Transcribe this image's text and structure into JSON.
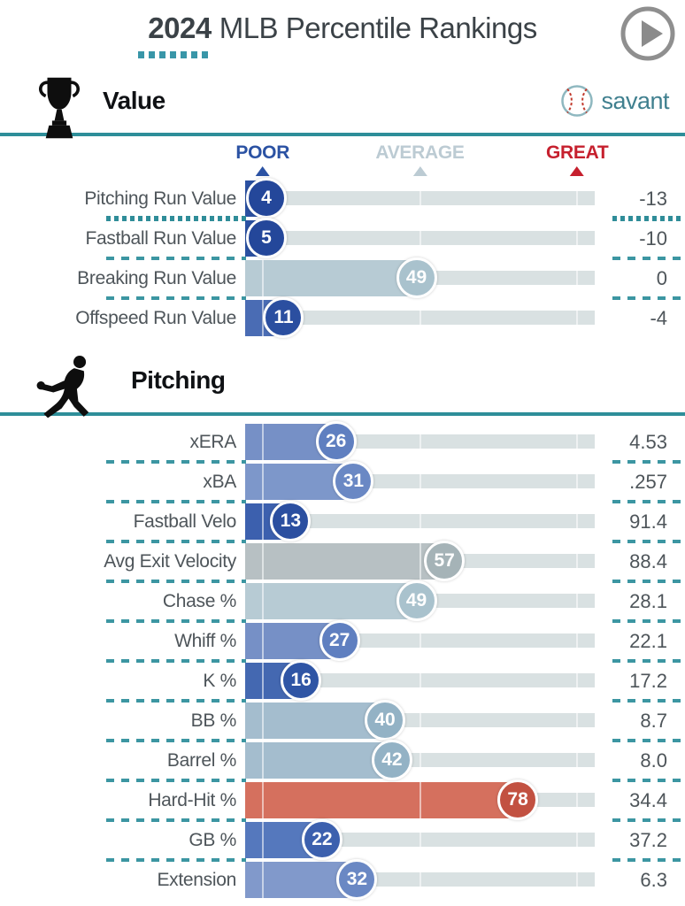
{
  "header": {
    "year": "2024",
    "title": "MLB Percentile Rankings"
  },
  "brand": {
    "name": "savant"
  },
  "legend": {
    "poor": "POOR",
    "average": "AVERAGE",
    "great": "GREAT"
  },
  "colors": {
    "accent_teal": "#2e8e99",
    "poor": "#2b52a3",
    "average": "#bccbd3",
    "great": "#c6202e",
    "track": "#d9e1e2"
  },
  "chart_data": {
    "type": "bar",
    "subtype": "percentile-rankings",
    "title": "2024 MLB Percentile Rankings",
    "axis": {
      "min": 0,
      "max": 100,
      "threshold_markers": [
        5,
        50,
        95
      ],
      "grid": false
    },
    "legend_entries": [
      "POOR",
      "AVERAGE",
      "GREAT"
    ],
    "sections": [
      {
        "title": "Value",
        "icon": "trophy-icon",
        "show_legend": true,
        "show_logo": true,
        "rows": [
          {
            "label": "Pitching Run Value",
            "percentile": 4,
            "value": "-13",
            "fill": "#2b51a2",
            "bubble": "#24479a",
            "sep": "dotted"
          },
          {
            "label": "Fastball Run Value",
            "percentile": 5,
            "value": "-10",
            "fill": "#2b51a2",
            "bubble": "#24479a",
            "sep": "dashed"
          },
          {
            "label": "Breaking Run Value",
            "percentile": 49,
            "value": "0",
            "fill": "#b7cbd4",
            "bubble": "#a9c2cd",
            "sep": "dashed"
          },
          {
            "label": "Offspeed Run Value",
            "percentile": 11,
            "value": "-4",
            "fill": "#4a6cb4",
            "bubble": "#2b4fa0",
            "sep": "none"
          }
        ]
      },
      {
        "title": "Pitching",
        "icon": "pitcher-icon",
        "show_legend": false,
        "show_logo": false,
        "rows": [
          {
            "label": "xERA",
            "percentile": 26,
            "value": "4.53",
            "fill": "#7690c6",
            "bubble": "#5f7fc0",
            "sep": "dashed"
          },
          {
            "label": "xBA",
            "percentile": 31,
            "value": ".257",
            "fill": "#7d97ca",
            "bubble": "#6a88c4",
            "sep": "dashed"
          },
          {
            "label": "Fastball Velo",
            "percentile": 13,
            "value": "91.4",
            "fill": "#3c60ae",
            "bubble": "#2b4fa0",
            "sep": "dashed"
          },
          {
            "label": "Avg Exit Velocity",
            "percentile": 57,
            "value": "88.4",
            "fill": "#b7c0c3",
            "bubble": "#a5b3b7",
            "sep": "dashed"
          },
          {
            "label": "Chase %",
            "percentile": 49,
            "value": "28.1",
            "fill": "#b7cbd4",
            "bubble": "#a9c2cd",
            "sep": "dashed"
          },
          {
            "label": "Whiff %",
            "percentile": 27,
            "value": "22.1",
            "fill": "#7690c6",
            "bubble": "#5f7fc0",
            "sep": "dashed"
          },
          {
            "label": "K %",
            "percentile": 16,
            "value": "17.2",
            "fill": "#4468b1",
            "bubble": "#2f55a5",
            "sep": "dashed"
          },
          {
            "label": "BB %",
            "percentile": 40,
            "value": "8.7",
            "fill": "#a4bdce",
            "bubble": "#93b2c5",
            "sep": "dashed"
          },
          {
            "label": "Barrel %",
            "percentile": 42,
            "value": "8.0",
            "fill": "#a4bdce",
            "bubble": "#93b2c5",
            "sep": "dashed"
          },
          {
            "label": "Hard-Hit %",
            "percentile": 78,
            "value": "34.4",
            "fill": "#d5705e",
            "bubble": "#c25141",
            "sep": "dashed"
          },
          {
            "label": "GB %",
            "percentile": 22,
            "value": "37.2",
            "fill": "#5578bd",
            "bubble": "#3c60ae",
            "sep": "dashed"
          },
          {
            "label": "Extension",
            "percentile": 32,
            "value": "6.3",
            "fill": "#8199cb",
            "bubble": "#6a88c4",
            "sep": "none"
          }
        ]
      }
    ]
  }
}
